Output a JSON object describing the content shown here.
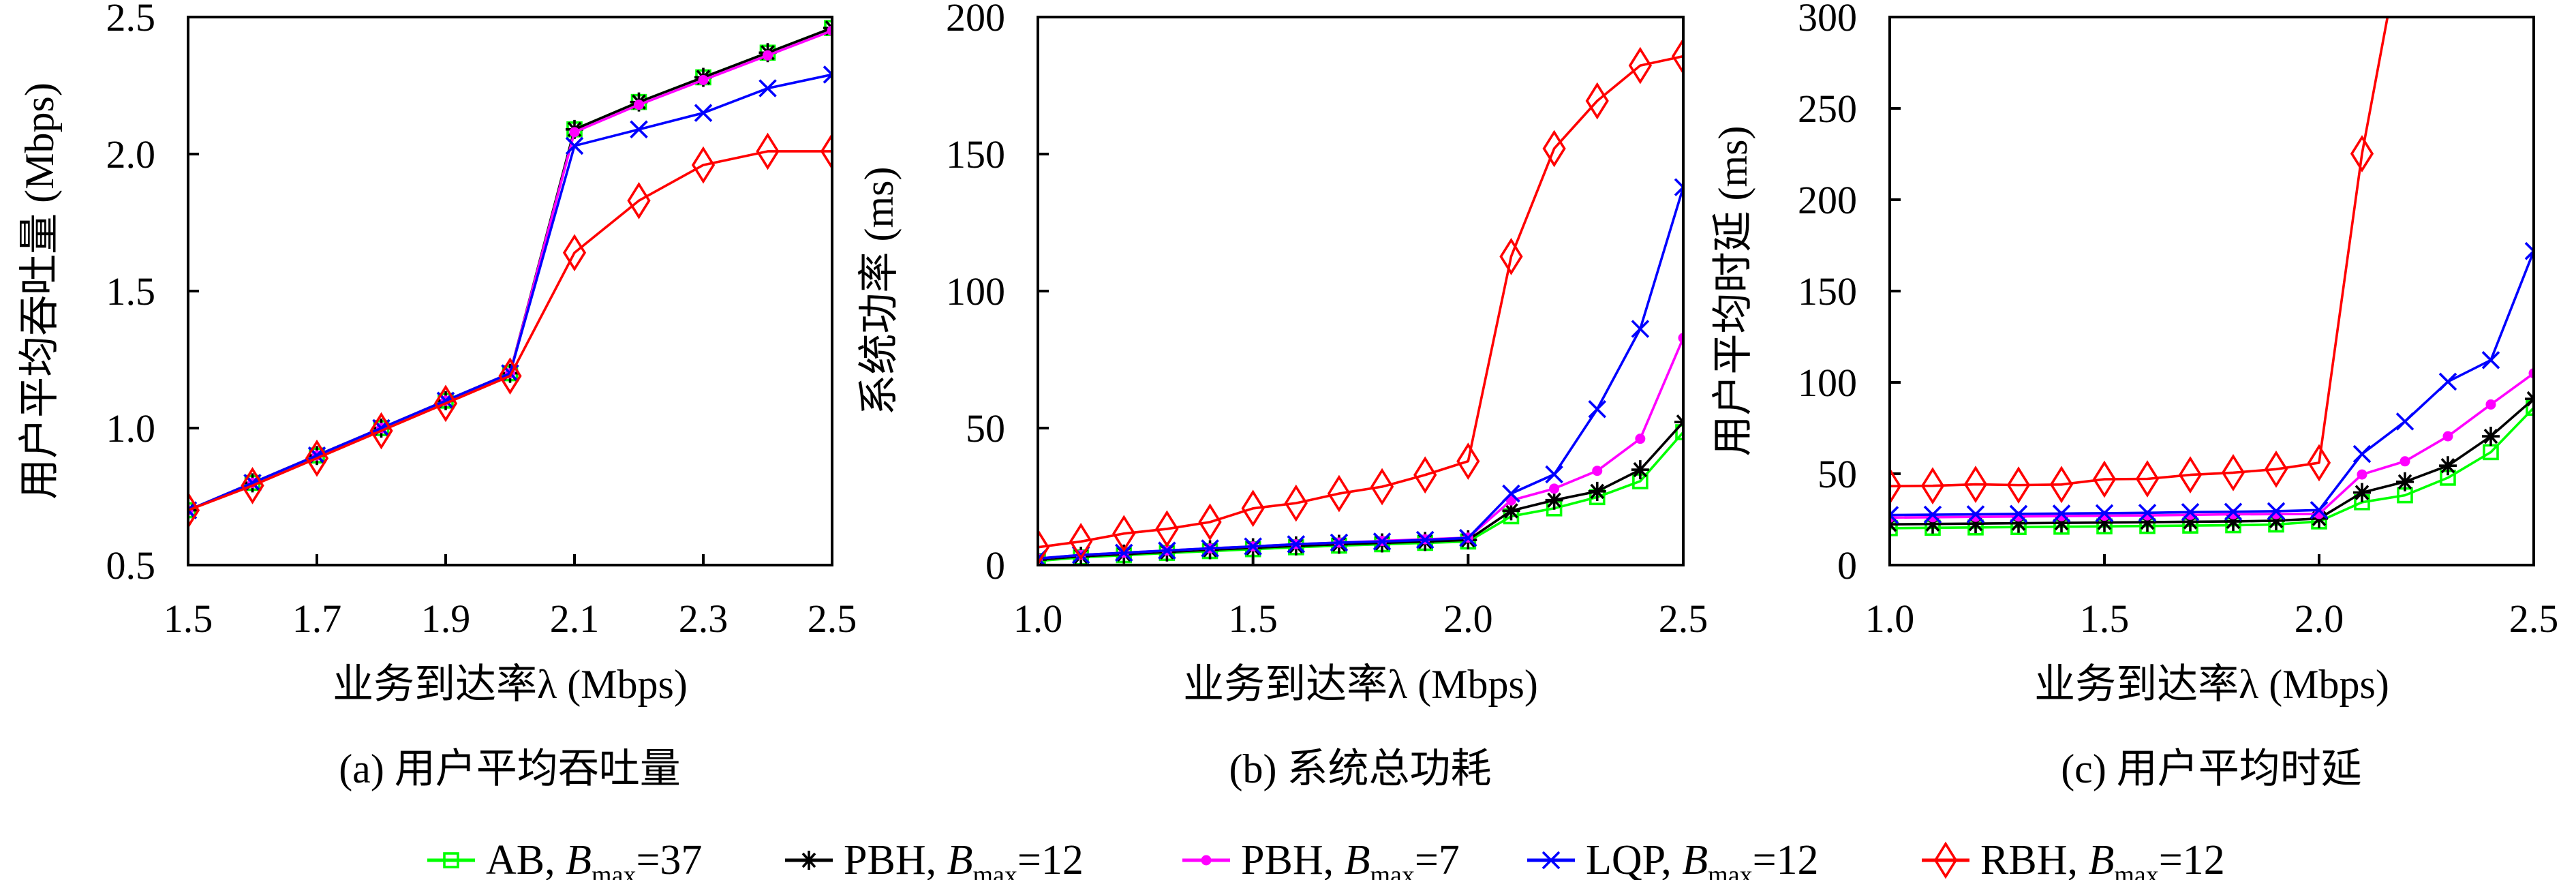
{
  "figure": {
    "legend": [
      {
        "series": "AB",
        "label": "AB, ",
        "param": "B",
        "sub": "max",
        "value": "=37"
      },
      {
        "series": "PBH12",
        "label": "PBH, ",
        "param": "B",
        "sub": "max",
        "value": "=12"
      },
      {
        "series": "PBH7",
        "label": "PBH, ",
        "param": "B",
        "sub": "max",
        "value": "=7"
      },
      {
        "series": "LQP",
        "label": "LQP, ",
        "param": "B",
        "sub": "max",
        "value": "=12"
      },
      {
        "series": "RBH",
        "label": "RBH, ",
        "param": "B",
        "sub": "max",
        "value": "=12"
      }
    ]
  },
  "series_style": {
    "AB": {
      "color": "#00ff00",
      "marker": "square"
    },
    "PBH12": {
      "color": "#000000",
      "marker": "asterisk"
    },
    "PBH7": {
      "color": "#ff00ff",
      "marker": "circle"
    },
    "LQP": {
      "color": "#0000ff",
      "marker": "x"
    },
    "RBH": {
      "color": "#ff0000",
      "marker": "diamond"
    }
  },
  "chart_data": [
    {
      "type": "line",
      "caption": "(a) 用户平均吞吐量",
      "title": "",
      "xlabel": "业务到达率λ (Mbps)",
      "ylabel": "用户平均吞吐量 (Mbps)",
      "xlim": [
        1.5,
        2.5
      ],
      "ylim": [
        0.5,
        2.5
      ],
      "xticks": [
        1.5,
        1.7,
        1.9,
        2.1,
        2.3,
        2.5
      ],
      "xtick_labels": [
        "1.5",
        "1.7",
        "1.9",
        "2.1",
        "2.3",
        "2.5"
      ],
      "yticks": [
        0.5,
        1.0,
        1.5,
        2.0,
        2.5
      ],
      "ytick_labels": [
        "0.5",
        "1.0",
        "1.5",
        "2.0",
        "2.5"
      ],
      "grid": false,
      "legend_placement": "bottom-center (shared)",
      "x": [
        1.5,
        1.6,
        1.7,
        1.8,
        1.9,
        2.0,
        2.1,
        2.2,
        2.3,
        2.4,
        2.5
      ],
      "series": [
        {
          "key": "AB",
          "name": "AB, B_max=37",
          "values": [
            0.7,
            0.8,
            0.9,
            1.0,
            1.1,
            1.2,
            2.09,
            2.19,
            2.28,
            2.37,
            2.46
          ]
        },
        {
          "key": "PBH12",
          "name": "PBH, B_max=12",
          "values": [
            0.7,
            0.8,
            0.9,
            1.0,
            1.1,
            1.2,
            2.09,
            2.19,
            2.28,
            2.37,
            2.46
          ]
        },
        {
          "key": "PBH7",
          "name": "PBH, B_max=7",
          "values": [
            0.7,
            0.8,
            0.9,
            1.0,
            1.1,
            1.2,
            2.08,
            2.18,
            2.27,
            2.36,
            2.45
          ]
        },
        {
          "key": "LQP",
          "name": "LQP, B_max=12",
          "values": [
            0.7,
            0.8,
            0.9,
            1.0,
            1.1,
            1.2,
            2.03,
            2.09,
            2.15,
            2.24,
            2.29
          ]
        },
        {
          "key": "RBH",
          "name": "RBH, B_max=12",
          "values": [
            0.7,
            0.79,
            0.89,
            0.99,
            1.09,
            1.19,
            1.64,
            1.83,
            1.96,
            2.01,
            2.01
          ]
        }
      ]
    },
    {
      "type": "line",
      "caption": "(b) 系统总功耗",
      "title": "",
      "xlabel": "业务到达率λ (Mbps)",
      "ylabel": "系统功率 (ms)",
      "xlim": [
        1.0,
        2.5
      ],
      "ylim": [
        0,
        200
      ],
      "xticks": [
        1.0,
        1.5,
        2.0,
        2.5
      ],
      "xtick_labels": [
        "1.0",
        "1.5",
        "2.0",
        "2.5"
      ],
      "yticks": [
        0,
        50,
        100,
        150,
        200
      ],
      "ytick_labels": [
        "0",
        "50",
        "100",
        "150",
        "200"
      ],
      "grid": false,
      "legend_placement": "bottom-center (shared)",
      "x": [
        1.0,
        1.1,
        1.2,
        1.3,
        1.4,
        1.5,
        1.6,
        1.7,
        1.8,
        1.9,
        2.0,
        2.1,
        2.2,
        2.3,
        2.4,
        2.5
      ],
      "series": [
        {
          "key": "AB",
          "name": "AB, B_max=37",
          "values": [
            1.5,
            2.8,
            3.6,
            4.4,
            5.1,
            5.8,
            6.5,
            7.1,
            7.6,
            8.1,
            8.6,
            17.8,
            20.7,
            24.8,
            30.6,
            48.5
          ]
        },
        {
          "key": "PBH12",
          "name": "PBH, B_max=12",
          "values": [
            2.0,
            3.2,
            4.0,
            4.8,
            5.6,
            6.3,
            7.0,
            7.6,
            8.1,
            8.6,
            9.2,
            19.8,
            23.7,
            26.9,
            34.8,
            52.2
          ]
        },
        {
          "key": "PBH7",
          "name": "PBH, B_max=7",
          "values": [
            2.4,
            3.7,
            4.5,
            5.3,
            6.1,
            6.8,
            7.6,
            8.2,
            8.8,
            9.4,
            10.0,
            23.6,
            27.9,
            34.4,
            46.1,
            82.9
          ]
        },
        {
          "key": "LQP",
          "name": "LQP, B_max=12",
          "values": [
            2.4,
            3.7,
            4.5,
            5.3,
            6.1,
            6.8,
            7.6,
            8.2,
            8.6,
            9.2,
            9.9,
            26.1,
            33.1,
            56.9,
            86.2,
            137.9
          ]
        },
        {
          "key": "RBH",
          "name": "RBH, B_max=12",
          "values": [
            6.5,
            8.6,
            11.5,
            13.2,
            15.7,
            20.7,
            22.6,
            26.1,
            28.6,
            32.9,
            37.9,
            112.6,
            152.0,
            169.4,
            182.3,
            185.7
          ]
        }
      ]
    },
    {
      "type": "line",
      "caption": "(c) 用户平均时延",
      "title": "",
      "xlabel": "业务到达率λ (Mbps)",
      "ylabel": "用户平均时延 (ms)",
      "xlim": [
        1.0,
        2.5
      ],
      "ylim": [
        0,
        300
      ],
      "xticks": [
        1.0,
        1.5,
        2.0,
        2.5
      ],
      "xtick_labels": [
        "1.0",
        "1.5",
        "2.0",
        "2.5"
      ],
      "yticks": [
        0,
        50,
        100,
        150,
        200,
        250,
        300
      ],
      "ytick_labels": [
        "0",
        "50",
        "100",
        "150",
        "200",
        "250",
        "300"
      ],
      "grid": false,
      "legend_placement": "bottom-center (shared)",
      "x": [
        1.0,
        1.1,
        1.2,
        1.3,
        1.4,
        1.5,
        1.6,
        1.7,
        1.8,
        1.9,
        2.0,
        2.1,
        2.2,
        2.3,
        2.4,
        2.5
      ],
      "series": [
        {
          "key": "AB",
          "name": "AB, B_max=37",
          "values": [
            20.2,
            20.4,
            20.6,
            20.8,
            21.0,
            21.2,
            21.4,
            21.6,
            21.8,
            22.2,
            23.9,
            34.4,
            38.2,
            47.8,
            61.8,
            86.1
          ]
        },
        {
          "key": "PBH12",
          "name": "PBH, B_max=12",
          "values": [
            22.3,
            22.5,
            22.7,
            22.9,
            23.1,
            23.3,
            23.5,
            23.7,
            23.9,
            24.3,
            25.5,
            39.7,
            45.6,
            54.4,
            70.5,
            91.0
          ]
        },
        {
          "key": "PBH7",
          "name": "PBH, B_max=7",
          "values": [
            26.0,
            26.2,
            26.4,
            26.6,
            26.8,
            27.0,
            27.2,
            27.5,
            27.8,
            27.9,
            28.0,
            49.6,
            56.8,
            70.5,
            87.9,
            105.0
          ]
        },
        {
          "key": "LQP",
          "name": "LQP, B_max=12",
          "values": [
            27.4,
            27.6,
            27.8,
            28.0,
            28.2,
            28.4,
            28.6,
            29.0,
            29.2,
            29.5,
            30.1,
            60.8,
            78.6,
            100.4,
            112.2,
            171.9
          ]
        },
        {
          "key": "RBH",
          "name": "RBH, B_max=12",
          "values": [
            43.2,
            43.4,
            44.2,
            43.8,
            44.1,
            47.0,
            47.2,
            49.4,
            50.6,
            52.5,
            56.0,
            225.2,
            null,
            null,
            null,
            null
          ],
          "off_scale_after_x": 2.1,
          "exits_ylim_top_at_x": 2.16
        }
      ]
    }
  ]
}
